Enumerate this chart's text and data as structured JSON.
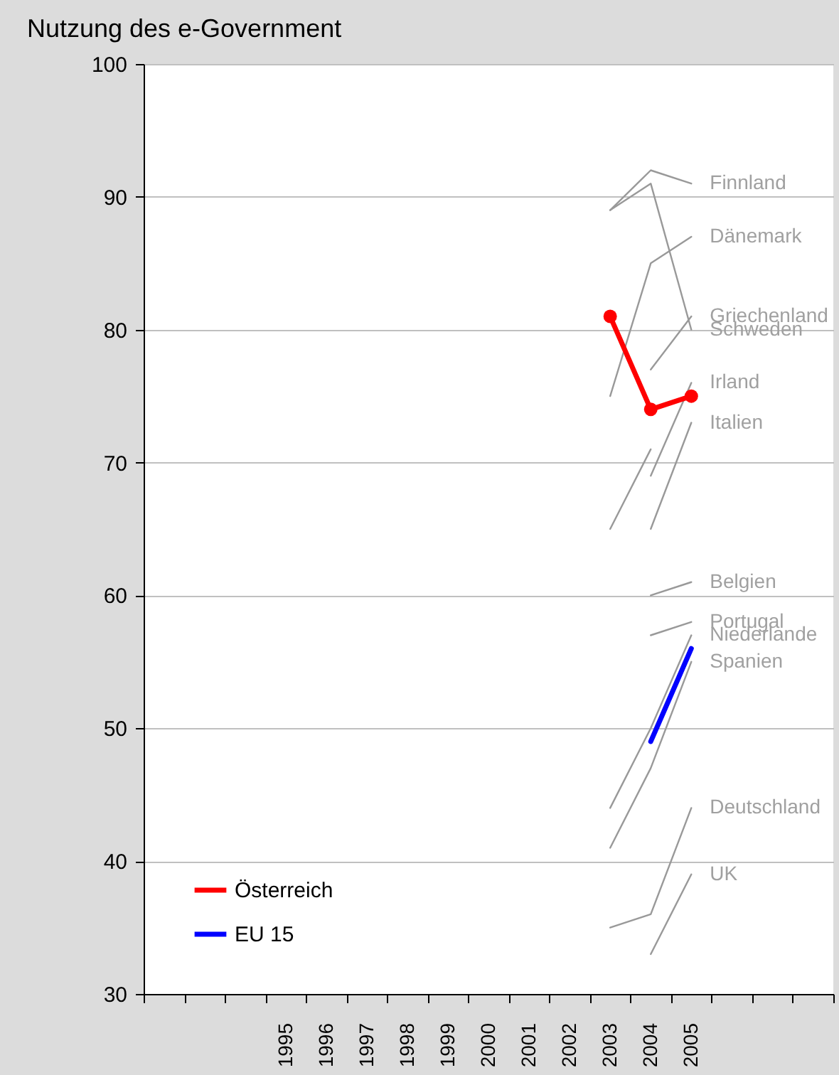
{
  "chart_data": {
    "type": "line",
    "title": "Nutzung des e-Government",
    "categories": [
      null,
      null,
      null,
      "1995",
      "1996",
      "1997",
      "1998",
      "1999",
      "2000",
      "2001",
      "2002",
      "2003",
      "2004",
      "2005",
      null,
      null,
      null
    ],
    "ylim": [
      30,
      100
    ],
    "yticks": [
      30,
      40,
      50,
      60,
      70,
      80,
      90,
      100
    ],
    "grid": "y",
    "legend": "bottom left",
    "marker": "none",
    "line_style": "solid",
    "series": [
      {
        "name": "Finnland",
        "color": "#999999",
        "values": [
          null,
          null,
          null,
          null,
          null,
          null,
          null,
          null,
          null,
          null,
          null,
          89,
          92,
          91,
          null,
          null,
          null
        ]
      },
      {
        "name": "Dänemark",
        "color": "#999999",
        "values": [
          null,
          null,
          null,
          null,
          null,
          null,
          null,
          null,
          null,
          null,
          null,
          75,
          85,
          87,
          null,
          null,
          null
        ]
      },
      {
        "name": "Griechenland",
        "color": "#999999",
        "values": [
          null,
          null,
          null,
          null,
          null,
          null,
          null,
          null,
          null,
          null,
          null,
          null,
          77,
          81,
          null,
          null,
          null
        ]
      },
      {
        "name": "Schweden",
        "color": "#999999",
        "values": [
          null,
          null,
          null,
          null,
          null,
          null,
          null,
          null,
          null,
          null,
          null,
          89,
          91,
          80,
          null,
          null,
          null
        ]
      },
      {
        "name": "Irland",
        "color": "#999999",
        "values": [
          null,
          null,
          null,
          null,
          null,
          null,
          null,
          null,
          null,
          null,
          null,
          null,
          69,
          76,
          null,
          null,
          null
        ]
      },
      {
        "name": "Italien",
        "color": "#999999",
        "values": [
          null,
          null,
          null,
          null,
          null,
          null,
          null,
          null,
          null,
          null,
          null,
          null,
          65,
          73,
          null,
          null,
          null
        ]
      },
      {
        "color": "#999999",
        "values": [
          null,
          null,
          null,
          null,
          null,
          null,
          null,
          null,
          null,
          null,
          null,
          65,
          71,
          null,
          null,
          null,
          null
        ]
      },
      {
        "name": "Belgien",
        "color": "#999999",
        "values": [
          null,
          null,
          null,
          null,
          null,
          null,
          null,
          null,
          null,
          null,
          null,
          null,
          60,
          61,
          null,
          null,
          null
        ]
      },
      {
        "name": "Portugal",
        "color": "#999999",
        "values": [
          null,
          null,
          null,
          null,
          null,
          null,
          null,
          null,
          null,
          null,
          null,
          null,
          57,
          58,
          null,
          null,
          null
        ]
      },
      {
        "name": "Niederlande",
        "color": "#999999",
        "values": [
          null,
          null,
          null,
          null,
          null,
          null,
          null,
          null,
          null,
          null,
          null,
          44,
          50,
          57,
          null,
          null,
          null
        ]
      },
      {
        "name": "Spanien",
        "color": "#999999",
        "values": [
          null,
          null,
          null,
          null,
          null,
          null,
          null,
          null,
          null,
          null,
          null,
          41,
          47,
          55,
          null,
          null,
          null
        ]
      },
      {
        "name": "Deutschland",
        "color": "#999999",
        "values": [
          null,
          null,
          null,
          null,
          null,
          null,
          null,
          null,
          null,
          null,
          null,
          35,
          36,
          44,
          null,
          null,
          null
        ]
      },
      {
        "name": "UK",
        "color": "#999999",
        "values": [
          null,
          null,
          null,
          null,
          null,
          null,
          null,
          null,
          null,
          null,
          null,
          null,
          33,
          39,
          null,
          null,
          null
        ]
      },
      {
        "name": "Österreich",
        "color": "#ff0000",
        "marker": "circle",
        "values": [
          null,
          null,
          null,
          null,
          null,
          null,
          null,
          null,
          null,
          null,
          null,
          81,
          74,
          75,
          null,
          null,
          null
        ]
      },
      {
        "name": "EU 15",
        "color": "#0000ff",
        "values": [
          null,
          null,
          null,
          null,
          null,
          null,
          null,
          null,
          null,
          null,
          null,
          null,
          49,
          56,
          null,
          null,
          null
        ]
      }
    ]
  }
}
